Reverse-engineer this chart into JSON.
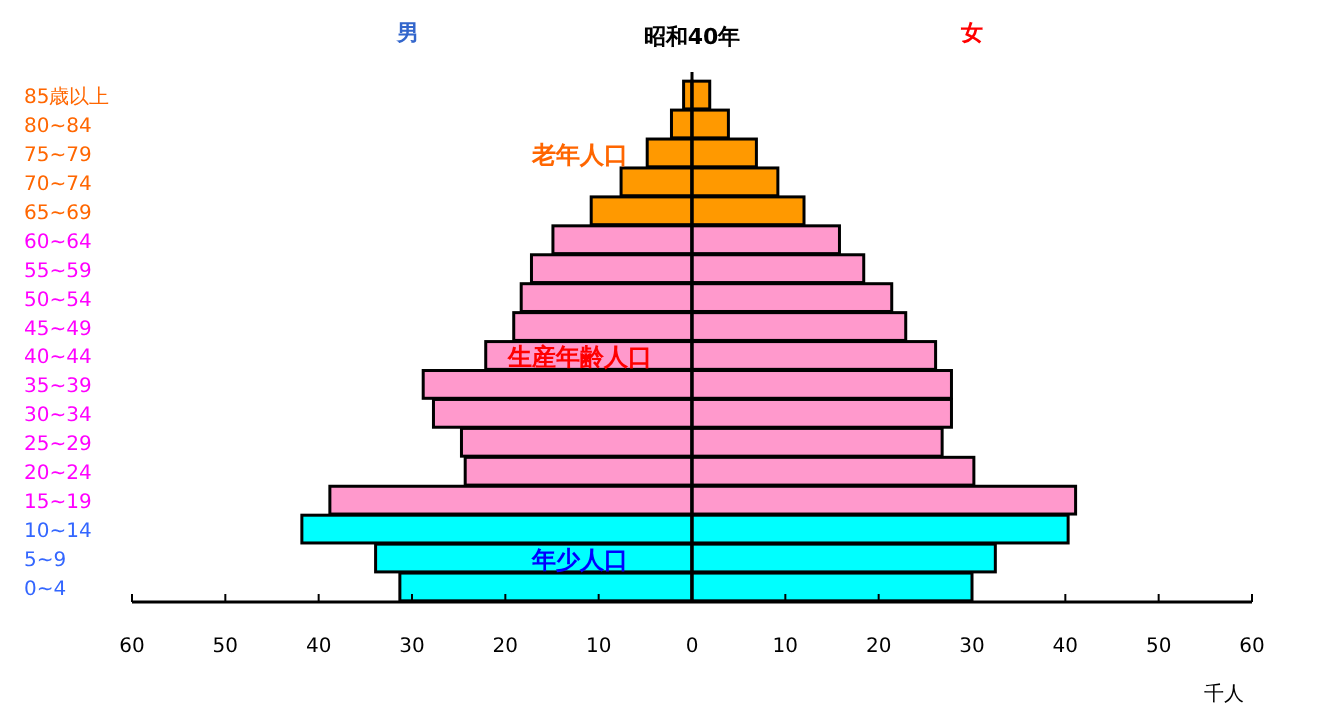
{
  "chart_data": {
    "type": "bar",
    "orientation": "horizontal",
    "title": "昭和40年",
    "xlabel": "千人",
    "categories": [
      "85歳以上",
      "80~84",
      "75~79",
      "70~74",
      "65~69",
      "60~64",
      "55~59",
      "50~54",
      "45~49",
      "40~44",
      "35~39",
      "30~34",
      "25~29",
      "20~24",
      "15~19",
      "10~14",
      "5~9",
      "0~4"
    ],
    "series": [
      {
        "name": "男",
        "color": "#3366cc",
        "colors": [
          "#ff9900",
          "#ff9900",
          "#ff9900",
          "#ff9900",
          "#ff9900",
          "#ff99cc",
          "#ff99cc",
          "#ff99cc",
          "#ff99cc",
          "#ff99cc",
          "#ff99cc",
          "#ff99cc",
          "#ff99cc",
          "#ff99cc",
          "#ff99cc",
          "#00ffff",
          "#00ffff",
          "#00ffff"
        ],
        "values": [
          -0.9,
          -2.2,
          -4.8,
          -7.6,
          -10.8,
          -14.9,
          -17.2,
          -18.3,
          -19.1,
          -22.1,
          -28.8,
          -27.7,
          -24.7,
          -24.3,
          -38.8,
          -41.8,
          -33.9,
          -31.3
        ]
      },
      {
        "name": "女",
        "color": "#ff0000",
        "colors": [
          "#ff9900",
          "#ff9900",
          "#ff9900",
          "#ff9900",
          "#ff9900",
          "#ff99cc",
          "#ff99cc",
          "#ff99cc",
          "#ff99cc",
          "#ff99cc",
          "#ff99cc",
          "#ff99cc",
          "#ff99cc",
          "#ff99cc",
          "#ff99cc",
          "#00ffff",
          "#00ffff",
          "#00ffff"
        ],
        "values": [
          1.9,
          3.9,
          6.9,
          9.2,
          12.0,
          15.8,
          18.4,
          21.4,
          22.9,
          26.1,
          27.8,
          27.8,
          26.8,
          30.2,
          41.1,
          40.3,
          32.5,
          30.0
        ]
      }
    ],
    "xlim": [
      -60,
      60
    ],
    "xticks": [
      {
        "value": -60,
        "label": "60"
      },
      {
        "value": -50,
        "label": "50"
      },
      {
        "value": -40,
        "label": "40"
      },
      {
        "value": -30,
        "label": "30"
      },
      {
        "value": -20,
        "label": "20"
      },
      {
        "value": -10,
        "label": "10"
      },
      0,
      10,
      20,
      30,
      40,
      50,
      60
    ],
    "annotations": [
      "老年人口",
      "生産年齢人口",
      "年少人口"
    ],
    "ref_lines": [
      {
        "axis": "x",
        "value": 0
      }
    ],
    "stacked": true,
    "grid": false,
    "legend": "top"
  }
}
